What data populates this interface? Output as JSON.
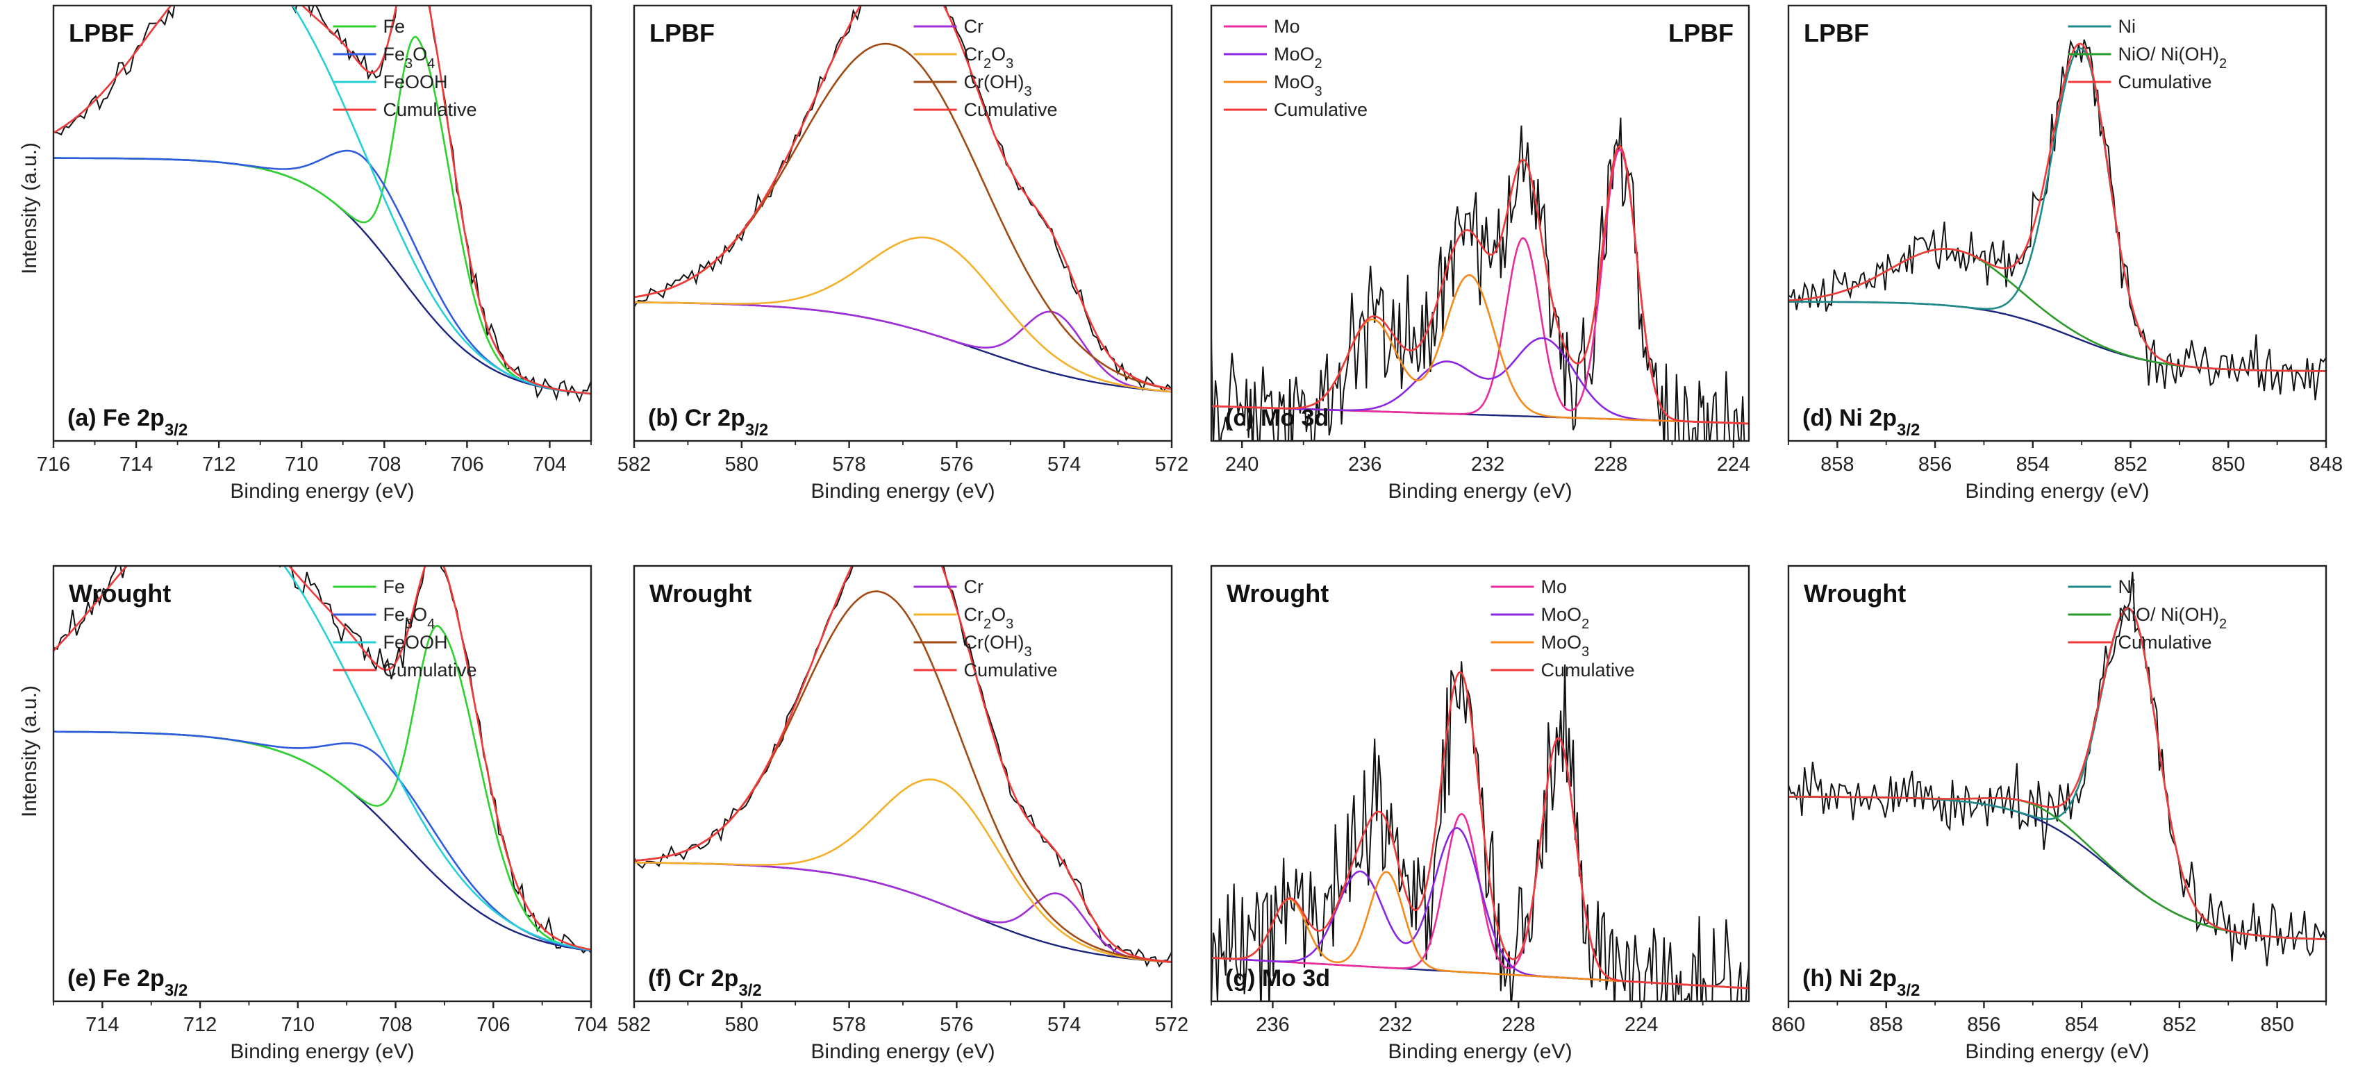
{
  "figure": {
    "ylabel": "Intensity (a.u.)",
    "xlabel": "Binding energy (eV)"
  },
  "chart_data": [
    {
      "id": "a",
      "type": "line",
      "row_label": "LPBF",
      "label_prefix": "(a) Fe 2p",
      "label_sub": "3/2",
      "xlim": [
        716,
        703
      ],
      "ticks": [
        716,
        714,
        712,
        710,
        708,
        706,
        704
      ],
      "ylim": [
        0,
        100
      ],
      "legend_position": "top-right",
      "title_position": "top-left",
      "xlabel": "Binding energy (eV)",
      "series": [
        {
          "name": "Fe",
          "name_parts": [
            [
              "Fe",
              "n"
            ]
          ],
          "color": "#2ed12e",
          "shape": "asym",
          "center": 707.2,
          "width_low": 0.8,
          "width_high": 0.5,
          "amp": 60,
          "bg": "shirley",
          "bg_high": 65,
          "bg_low": 10,
          "bg_center": 707.6,
          "bg_width": 1.1
        },
        {
          "name": "Fe3O4",
          "name_parts": [
            [
              "Fe",
              "n"
            ],
            [
              "3",
              "sub"
            ],
            [
              "O",
              "n"
            ],
            [
              "4",
              "sub"
            ]
          ],
          "color": "#2f5be0",
          "shape": "asym",
          "center": 708.4,
          "width_low": 1.3,
          "width_high": 0.9,
          "amp": 17,
          "bg": "shirley",
          "bg_high": 65,
          "bg_low": 10,
          "bg_center": 707.6,
          "bg_width": 1.1
        },
        {
          "name": "FeOOH",
          "name_parts": [
            [
              "FeOOH",
              "n"
            ]
          ],
          "color": "#27cfd6",
          "shape": "gauss",
          "center": 711.5,
          "width": 2.2,
          "amp": 47,
          "bg": "shirley",
          "bg_high": 65,
          "bg_low": 10,
          "bg_center": 707.6,
          "bg_width": 1.1
        },
        {
          "name": "Cumulative",
          "name_parts": [
            [
              "Cumulative",
              "n"
            ]
          ],
          "color": "#f03a3a",
          "shape": "sum"
        }
      ],
      "data_points": 140,
      "noise": 1.6
    },
    {
      "id": "b",
      "type": "line",
      "row_label": "LPBF",
      "label_prefix": "(b) Cr 2p",
      "label_sub": "3/2",
      "xlim": [
        582,
        572
      ],
      "ticks": [
        582,
        580,
        578,
        576,
        574,
        572
      ],
      "ylim": [
        0,
        100
      ],
      "legend_position": "top-right",
      "title_position": "top-left",
      "xlabel": "Binding energy (eV)",
      "series": [
        {
          "name": "Cr",
          "name_parts": [
            [
              "Cr",
              "n"
            ]
          ],
          "color": "#a02ed6",
          "shape": "gauss",
          "center": 574.2,
          "width": 0.55,
          "amp": 14,
          "bg": "shirley",
          "bg_high": 32,
          "bg_low": 10,
          "bg_center": 575.6,
          "bg_width": 1.3
        },
        {
          "name": "Cr2O3",
          "name_parts": [
            [
              "Cr",
              "n"
            ],
            [
              "2",
              "sub"
            ],
            [
              "O",
              "n"
            ],
            [
              "3",
              "sub"
            ]
          ],
          "color": "#f4b02a",
          "shape": "gauss",
          "center": 576.4,
          "width": 1.2,
          "amp": 22,
          "bg": "shirley",
          "bg_high": 32,
          "bg_low": 10,
          "bg_center": 575.6,
          "bg_width": 1.3
        },
        {
          "name": "Cr(OH)3",
          "name_parts": [
            [
              "Cr(OH)",
              "n"
            ],
            [
              "3",
              "sub"
            ]
          ],
          "color": "#a04a14",
          "shape": "gauss",
          "center": 577.2,
          "width": 1.7,
          "amp": 64,
          "bg": "shirley",
          "bg_high": 32,
          "bg_low": 10,
          "bg_center": 575.6,
          "bg_width": 1.3
        },
        {
          "name": "Cumulative",
          "name_parts": [
            [
              "Cumulative",
              "n"
            ]
          ],
          "color": "#f03a3a",
          "shape": "sum"
        }
      ],
      "data_points": 130,
      "noise": 1.2
    },
    {
      "id": "c",
      "type": "line",
      "row_label": "LPBF",
      "row_label_position": "top-right",
      "label_prefix": "(c) Mo 3d",
      "label_sub": "",
      "xlim": [
        241,
        223.5
      ],
      "ticks": [
        240,
        236,
        232,
        228,
        224
      ],
      "ylim": [
        0,
        100
      ],
      "legend_position": "top-left",
      "title_position": "top-right",
      "xlabel": "Binding energy (eV)",
      "series": [
        {
          "name": "Mo",
          "name_parts": [
            [
              "Mo",
              "n"
            ]
          ],
          "color": "#ea2c9c",
          "shape": "doublet",
          "center": 227.7,
          "split": 3.15,
          "ratio": 0.66,
          "width": 0.55,
          "amp": 62,
          "bg": "linear",
          "bg_high": 8,
          "bg_low": 4
        },
        {
          "name": "MoO2",
          "name_parts": [
            [
              "MoO",
              "n"
            ],
            [
              "2",
              "sub"
            ]
          ],
          "color": "#8a26e0",
          "shape": "doublet",
          "center": 230.2,
          "split": 3.15,
          "ratio": 0.66,
          "width": 1.0,
          "amp": 18,
          "bg": "linear",
          "bg_high": 8,
          "bg_low": 4
        },
        {
          "name": "MoO3",
          "name_parts": [
            [
              "MoO",
              "n"
            ],
            [
              "3",
              "sub"
            ]
          ],
          "color": "#f48a1a",
          "shape": "doublet",
          "center": 232.6,
          "split": 3.15,
          "ratio": 0.66,
          "width": 0.8,
          "amp": 32,
          "bg": "linear",
          "bg_high": 8,
          "bg_low": 4
        },
        {
          "name": "Cumulative",
          "name_parts": [
            [
              "Cumulative",
              "n"
            ]
          ],
          "color": "#f03a3a",
          "shape": "sum"
        }
      ],
      "data_points": 260,
      "noise": 7
    },
    {
      "id": "d",
      "type": "line",
      "row_label": "LPBF",
      "label_prefix": "(d) Ni 2p",
      "label_sub": "3/2",
      "xlim": [
        859,
        848
      ],
      "ticks": [
        858,
        856,
        854,
        852,
        850,
        848
      ],
      "ylim": [
        0,
        100
      ],
      "legend_position": "top-right",
      "title_position": "top-left",
      "xlabel": "Binding energy (eV)",
      "series": [
        {
          "name": "Ni",
          "name_parts": [
            [
              "Ni",
              "n"
            ]
          ],
          "color": "#1e8a8a",
          "shape": "asym",
          "center": 853.0,
          "width_low": 0.55,
          "width_high": 0.6,
          "amp": 67,
          "bg": "shirley",
          "bg_high": 32,
          "bg_low": 16,
          "bg_center": 853.2,
          "bg_width": 0.9
        },
        {
          "name": "NiO/ Ni(OH)2",
          "name_parts": [
            [
              "NiO/ Ni(OH)",
              "n"
            ],
            [
              "2",
              "sub"
            ]
          ],
          "color": "#2a9a2a",
          "shape": "gauss",
          "center": 855.7,
          "width": 1.2,
          "amp": 13,
          "bg": "shirley",
          "bg_high": 32,
          "bg_low": 16,
          "bg_center": 853.2,
          "bg_width": 0.9
        },
        {
          "name": "Cumulative",
          "name_parts": [
            [
              "Cumulative",
              "n"
            ]
          ],
          "color": "#f03a3a",
          "shape": "sum"
        }
      ],
      "data_points": 200,
      "noise": 3.4
    },
    {
      "id": "e",
      "type": "line",
      "row_label": "Wrought",
      "label_prefix": "(e) Fe 2p",
      "label_sub": "3/2",
      "xlim": [
        715,
        704
      ],
      "ticks": [
        714,
        712,
        710,
        708,
        706,
        704
      ],
      "ylim": [
        0,
        100
      ],
      "legend_position": "top-right",
      "title_position": "top-left",
      "xlabel": "Binding energy (eV)",
      "series": [
        {
          "name": "Fe",
          "name_parts": [
            [
              "Fe",
              "n"
            ]
          ],
          "color": "#2ed12e",
          "shape": "asym",
          "center": 707.1,
          "width_low": 0.8,
          "width_high": 0.5,
          "amp": 58,
          "bg": "shirley",
          "bg_high": 62,
          "bg_low": 10,
          "bg_center": 707.8,
          "bg_width": 1.1
        },
        {
          "name": "Fe3O4",
          "name_parts": [
            [
              "Fe",
              "n"
            ],
            [
              "3",
              "sub"
            ],
            [
              "O",
              "n"
            ],
            [
              "4",
              "sub"
            ]
          ],
          "color": "#2f5be0",
          "shape": "asym",
          "center": 708.3,
          "width_low": 1.3,
          "width_high": 0.9,
          "amp": 14,
          "bg": "shirley",
          "bg_high": 62,
          "bg_low": 10,
          "bg_center": 707.8,
          "bg_width": 1.1
        },
        {
          "name": "FeOOH",
          "name_parts": [
            [
              "FeOOH",
              "n"
            ]
          ],
          "color": "#27cfd6",
          "shape": "gauss",
          "center": 711.7,
          "width": 2.3,
          "amp": 52,
          "bg": "shirley",
          "bg_high": 62,
          "bg_low": 10,
          "bg_center": 707.8,
          "bg_width": 1.1
        },
        {
          "name": "Cumulative",
          "name_parts": [
            [
              "Cumulative",
              "n"
            ]
          ],
          "color": "#f03a3a",
          "shape": "sum"
        }
      ],
      "data_points": 140,
      "noise": 1.8
    },
    {
      "id": "f",
      "type": "line",
      "row_label": "Wrought",
      "label_prefix": "(f) Cr 2p",
      "label_sub": "3/2",
      "xlim": [
        582,
        572
      ],
      "ticks": [
        582,
        580,
        578,
        576,
        574,
        572
      ],
      "ylim": [
        0,
        100
      ],
      "legend_position": "top-right",
      "title_position": "top-left",
      "xlabel": "Binding energy (eV)",
      "series": [
        {
          "name": "Cr",
          "name_parts": [
            [
              "Cr",
              "n"
            ]
          ],
          "color": "#a02ed6",
          "shape": "gauss",
          "center": 574.1,
          "width": 0.5,
          "amp": 12,
          "bg": "shirley",
          "bg_high": 32,
          "bg_low": 8,
          "bg_center": 575.8,
          "bg_width": 1.2
        },
        {
          "name": "Cr2O3",
          "name_parts": [
            [
              "Cr",
              "n"
            ],
            [
              "2",
              "sub"
            ],
            [
              "O",
              "n"
            ],
            [
              "3",
              "sub"
            ]
          ],
          "color": "#f4b02a",
          "shape": "gauss",
          "center": 576.3,
          "width": 1.1,
          "amp": 28,
          "bg": "shirley",
          "bg_high": 32,
          "bg_low": 8,
          "bg_center": 575.8,
          "bg_width": 1.2
        },
        {
          "name": "Cr(OH)3",
          "name_parts": [
            [
              "Cr(OH)",
              "n"
            ],
            [
              "3",
              "sub"
            ]
          ],
          "color": "#a04a14",
          "shape": "gauss",
          "center": 577.4,
          "width": 1.45,
          "amp": 67,
          "bg": "shirley",
          "bg_high": 32,
          "bg_low": 8,
          "bg_center": 575.8,
          "bg_width": 1.2
        },
        {
          "name": "Cumulative",
          "name_parts": [
            [
              "Cumulative",
              "n"
            ]
          ],
          "color": "#f03a3a",
          "shape": "sum"
        }
      ],
      "data_points": 130,
      "noise": 1.2
    },
    {
      "id": "g",
      "type": "line",
      "row_label": "Wrought",
      "label_prefix": "(g) Mo 3d",
      "label_sub": "",
      "xlim": [
        238,
        220.5
      ],
      "ticks": [
        236,
        232,
        228,
        224
      ],
      "ylim": [
        0,
        100
      ],
      "legend_position": "top-right",
      "title_position": "top-left",
      "xlabel": "Binding energy (eV)",
      "series": [
        {
          "name": "Mo",
          "name_parts": [
            [
              "Mo",
              "n"
            ]
          ],
          "color": "#ea2c9c",
          "shape": "doublet",
          "center": 226.7,
          "split": 3.15,
          "ratio": 0.66,
          "width": 0.55,
          "amp": 55,
          "bg": "linear",
          "bg_high": 10,
          "bg_low": 3
        },
        {
          "name": "MoO2",
          "name_parts": [
            [
              "MoO",
              "n"
            ],
            [
              "2",
              "sub"
            ]
          ],
          "color": "#8a26e0",
          "shape": "doublet",
          "center": 230.0,
          "split": 3.15,
          "ratio": 0.66,
          "width": 0.75,
          "amp": 33,
          "bg": "linear",
          "bg_high": 10,
          "bg_low": 3
        },
        {
          "name": "MoO3",
          "name_parts": [
            [
              "MoO",
              "n"
            ],
            [
              "3",
              "sub"
            ]
          ],
          "color": "#f48a1a",
          "shape": "doublet",
          "center": 232.3,
          "split": 3.15,
          "ratio": 0.66,
          "width": 0.55,
          "amp": 22,
          "bg": "linear",
          "bg_high": 10,
          "bg_low": 3
        },
        {
          "name": "Cumulative",
          "name_parts": [
            [
              "Cumulative",
              "n"
            ]
          ],
          "color": "#f03a3a",
          "shape": "sum"
        }
      ],
      "data_points": 260,
      "noise": 8
    },
    {
      "id": "h",
      "type": "line",
      "row_label": "Wrought",
      "label_prefix": "(h) Ni 2p",
      "label_sub": "3/2",
      "xlim": [
        860,
        849
      ],
      "ticks": [
        860,
        858,
        856,
        854,
        852,
        850
      ],
      "ylim": [
        0,
        100
      ],
      "legend_position": "top-right",
      "title_position": "top-left",
      "xlabel": "Binding energy (eV)",
      "series": [
        {
          "name": "Ni",
          "name_parts": [
            [
              "Ni",
              "n"
            ]
          ],
          "color": "#1e8a8a",
          "shape": "asym",
          "center": 853.0,
          "width_low": 0.55,
          "width_high": 0.6,
          "amp": 63,
          "bg": "shirley",
          "bg_high": 47,
          "bg_low": 14,
          "bg_center": 853.4,
          "bg_width": 0.9
        },
        {
          "name": "NiO/ Ni(OH)2",
          "name_parts": [
            [
              "NiO/ Ni(OH)",
              "n"
            ],
            [
              "2",
              "sub"
            ]
          ],
          "color": "#2a9a2a",
          "shape": "gauss",
          "center": 855.0,
          "width": 0.8,
          "amp": 3,
          "bg": "shirley",
          "bg_high": 47,
          "bg_low": 14,
          "bg_center": 853.4,
          "bg_width": 0.9
        },
        {
          "name": "Cumulative",
          "name_parts": [
            [
              "Cumulative",
              "n"
            ]
          ],
          "color": "#f03a3a",
          "shape": "sum"
        }
      ],
      "data_points": 200,
      "noise": 3.6
    }
  ]
}
